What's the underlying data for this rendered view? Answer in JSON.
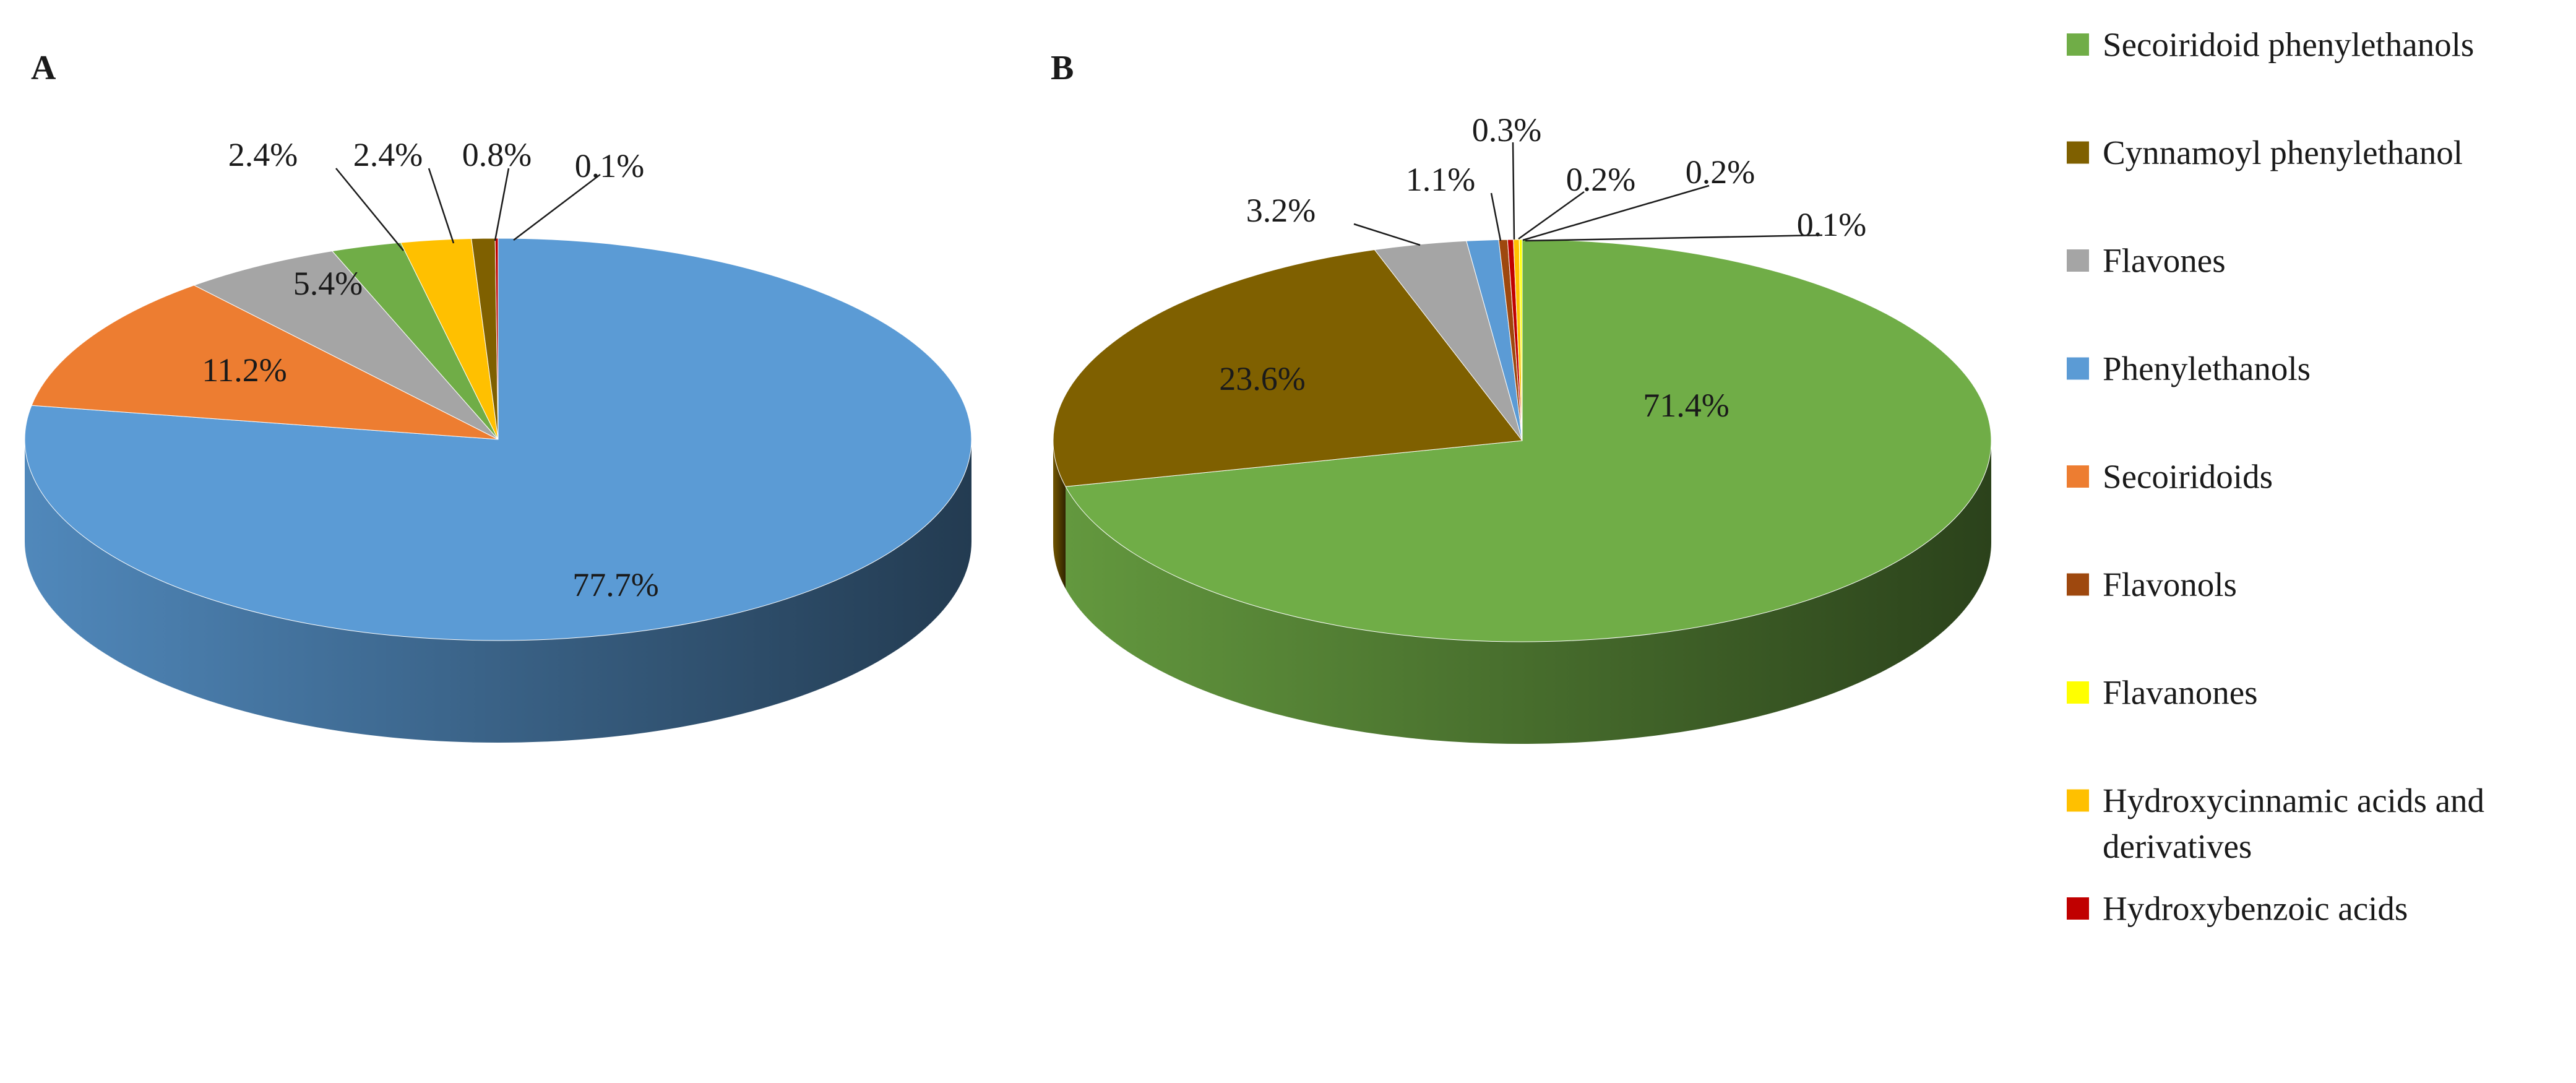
{
  "chart_data": [
    {
      "type": "pie",
      "panel": "A",
      "slices": [
        {
          "category": "Phenylethanols",
          "value": 77.7,
          "label": "77.7%"
        },
        {
          "category": "Secoiridoids",
          "value": 11.2,
          "label": "11.2%"
        },
        {
          "category": "Flavones",
          "value": 5.4,
          "label": "5.4%"
        },
        {
          "category": "Secoiridoid phenylethanols",
          "value": 2.4,
          "label": "2.4%"
        },
        {
          "category": "Hydroxycinnamic acids and derivatives",
          "value": 2.4,
          "label": "2.4%"
        },
        {
          "category": "Cynnamoyl phenylethanol",
          "value": 0.8,
          "label": "0.8%"
        },
        {
          "category": "Hydroxybenzoic acids",
          "value": 0.1,
          "label": "0.1%"
        }
      ]
    },
    {
      "type": "pie",
      "panel": "B",
      "slices": [
        {
          "category": "Secoiridoid phenylethanols",
          "value": 71.4,
          "label": "71.4%"
        },
        {
          "category": "Cynnamoyl phenylethanol",
          "value": 23.6,
          "label": "23.6%"
        },
        {
          "category": "Flavones",
          "value": 3.2,
          "label": "3.2%"
        },
        {
          "category": "Phenylethanols",
          "value": 1.1,
          "label": "1.1%"
        },
        {
          "category": "Flavonols",
          "value": 0.3,
          "label": "0.3%"
        },
        {
          "category": "Hydroxybenzoic acids",
          "value": 0.2,
          "label": "0.2%"
        },
        {
          "category": "Hydroxycinnamic acids and derivatives",
          "value": 0.2,
          "label": "0.2%"
        },
        {
          "category": "Flavanones",
          "value": 0.1,
          "label": "0.1%"
        }
      ]
    }
  ],
  "legend": {
    "placement": "right",
    "items": [
      {
        "key": "Secoiridoid phenylethanols",
        "lines": [
          "Secoiridoid phenylethanols"
        ],
        "color": "#70AD47"
      },
      {
        "key": "Cynnamoyl phenylethanol",
        "lines": [
          "Cynnamoyl phenylethanol"
        ],
        "color": "#7F6000"
      },
      {
        "key": "Flavones",
        "lines": [
          "Flavones"
        ],
        "color": "#A5A5A5"
      },
      {
        "key": "Phenylethanols",
        "lines": [
          "Phenylethanols"
        ],
        "color": "#5B9BD5"
      },
      {
        "key": "Secoiridoids",
        "lines": [
          "Secoiridoids"
        ],
        "color": "#ED7D31"
      },
      {
        "key": "Flavonols",
        "lines": [
          "Flavonols"
        ],
        "color": "#9E480E"
      },
      {
        "key": "Flavanones",
        "lines": [
          "Flavanones"
        ],
        "color": "#FFFF00"
      },
      {
        "key": "Hydroxycinnamic acids and derivatives",
        "lines": [
          "Hydroxycinnamic acids and",
          "derivatives"
        ],
        "color": "#FFC000"
      },
      {
        "key": "Hydroxybenzoic acids",
        "lines": [
          "Hydroxybenzoic acids"
        ],
        "color": "#C00000"
      }
    ]
  },
  "panels": {
    "a_label": "A",
    "b_label": "B"
  }
}
